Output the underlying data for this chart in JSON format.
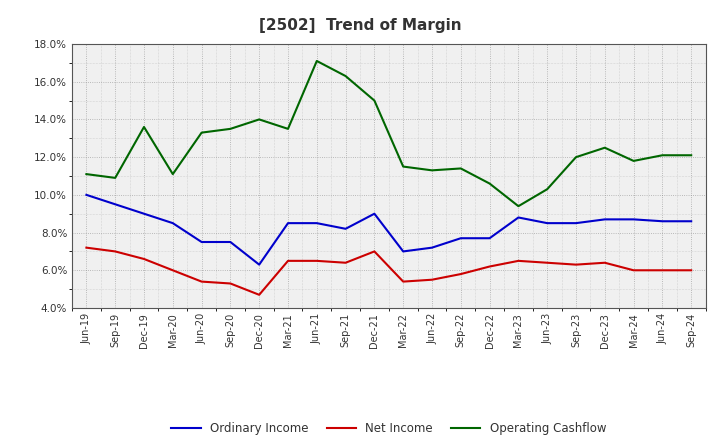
{
  "title": "[2502]  Trend of Margin",
  "x_labels": [
    "Jun-19",
    "Sep-19",
    "Dec-19",
    "Mar-20",
    "Jun-20",
    "Sep-20",
    "Dec-20",
    "Mar-21",
    "Jun-21",
    "Sep-21",
    "Dec-21",
    "Mar-22",
    "Jun-22",
    "Sep-22",
    "Dec-22",
    "Mar-23",
    "Jun-23",
    "Sep-23",
    "Dec-23",
    "Mar-24",
    "Jun-24",
    "Sep-24"
  ],
  "ordinary_income": [
    10.0,
    9.5,
    9.0,
    8.5,
    7.5,
    7.5,
    6.3,
    8.5,
    8.5,
    8.2,
    9.0,
    7.0,
    7.2,
    7.7,
    7.7,
    8.8,
    8.5,
    8.5,
    8.7,
    8.7,
    8.6,
    8.6
  ],
  "net_income": [
    7.2,
    7.0,
    6.6,
    6.0,
    5.4,
    5.3,
    4.7,
    6.5,
    6.5,
    6.4,
    7.0,
    5.4,
    5.5,
    5.8,
    6.2,
    6.5,
    6.4,
    6.3,
    6.4,
    6.0,
    6.0,
    6.0
  ],
  "operating_cashflow": [
    11.1,
    10.9,
    13.6,
    11.1,
    13.3,
    13.5,
    14.0,
    13.5,
    17.1,
    16.3,
    15.0,
    11.5,
    11.3,
    11.4,
    10.6,
    9.4,
    10.3,
    12.0,
    12.5,
    11.8,
    12.1,
    12.1
  ],
  "ylim": [
    4.0,
    18.0
  ],
  "yticks": [
    4.0,
    6.0,
    8.0,
    10.0,
    12.0,
    14.0,
    16.0,
    18.0
  ],
  "line_colors": {
    "ordinary_income": "#0000cc",
    "net_income": "#cc0000",
    "operating_cashflow": "#006600"
  },
  "legend_labels": [
    "Ordinary Income",
    "Net Income",
    "Operating Cashflow"
  ],
  "background_color": "#ffffff",
  "plot_bg_color": "#f0f0f0",
  "grid_color": "#888888",
  "title_color": "#333333"
}
